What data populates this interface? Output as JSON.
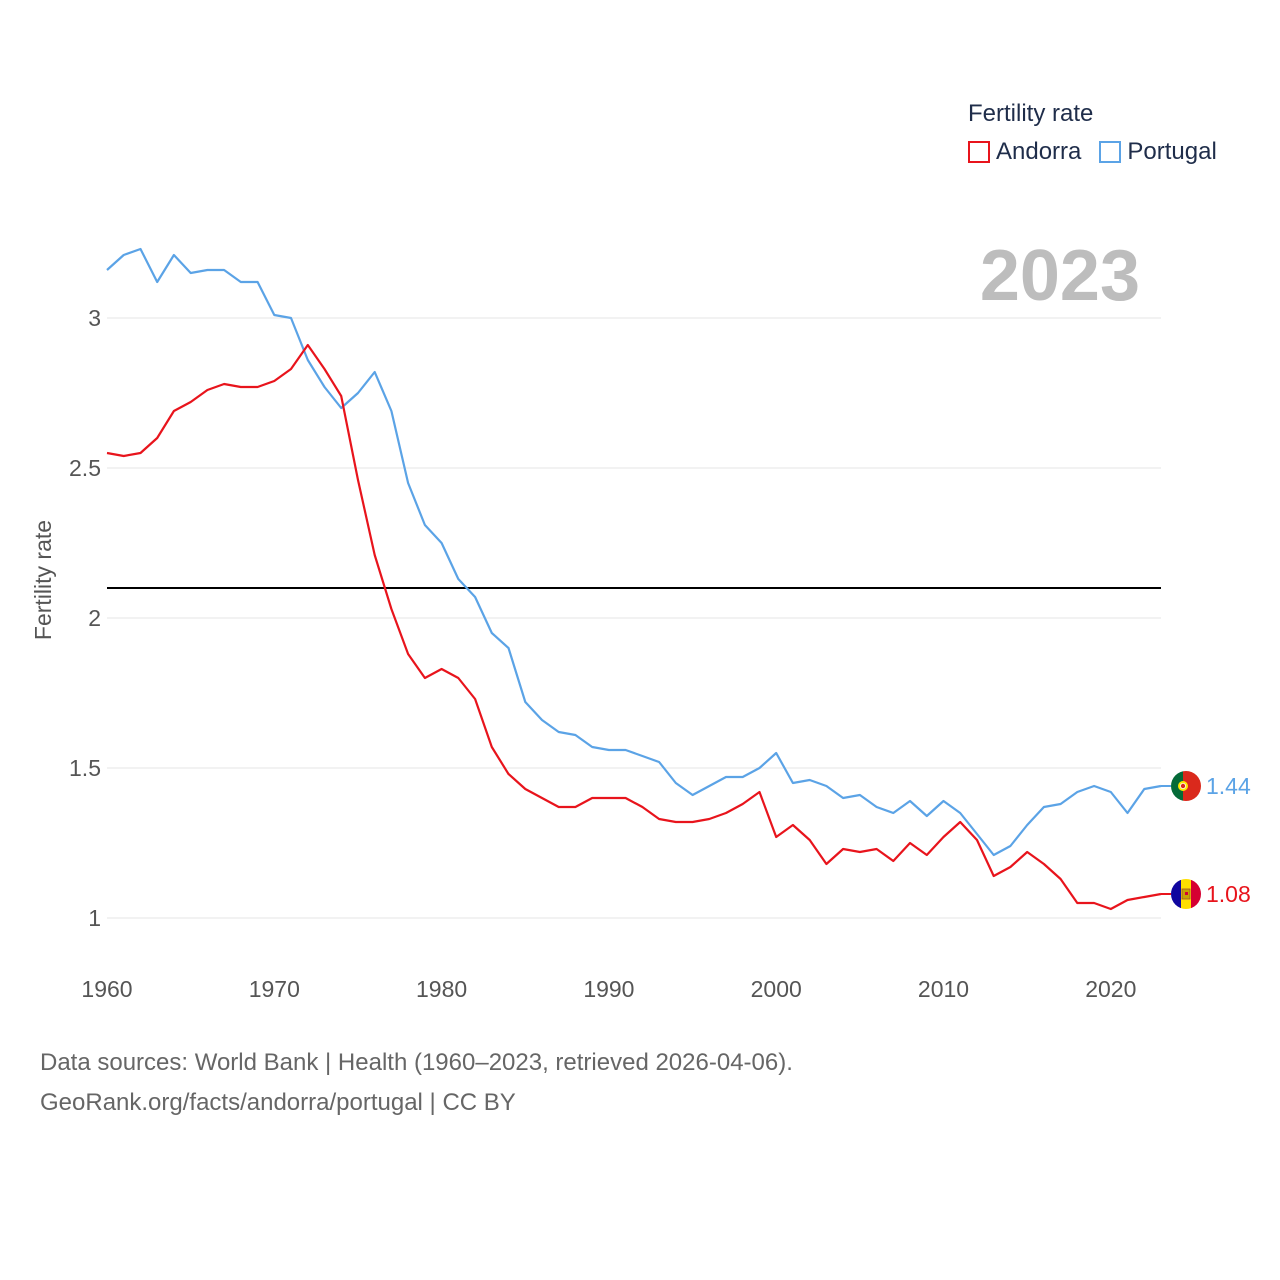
{
  "chart_data": {
    "type": "line",
    "title": "",
    "current_year": "2023",
    "xlabel": "",
    "ylabel": "Fertility rate",
    "xlim": [
      1960,
      2023
    ],
    "ylim": [
      0.9,
      3.3
    ],
    "x_ticks": [
      1960,
      1970,
      1980,
      1990,
      2000,
      2010,
      2020
    ],
    "y_ticks": [
      1,
      1.5,
      2,
      2.5,
      3
    ],
    "y_tick_labels": [
      "1",
      "1.5",
      "2",
      "2.5",
      "3"
    ],
    "reference_line": {
      "value": 2.1,
      "color": "#000000"
    },
    "legend": {
      "title": "Fertility rate",
      "position": "top-right"
    },
    "series": [
      {
        "name": "Andorra",
        "color": "#e8141c",
        "end_label": "1.08",
        "flag": "andorra-flag",
        "values": [
          2.55,
          2.54,
          2.55,
          2.6,
          2.69,
          2.72,
          2.76,
          2.78,
          2.77,
          2.77,
          2.79,
          2.83,
          2.91,
          2.83,
          2.74,
          2.46,
          2.21,
          2.03,
          1.88,
          1.8,
          1.83,
          1.8,
          1.73,
          1.57,
          1.48,
          1.43,
          1.4,
          1.37,
          1.37,
          1.4,
          1.4,
          1.4,
          1.37,
          1.33,
          1.32,
          1.32,
          1.33,
          1.35,
          1.38,
          1.42,
          1.27,
          1.31,
          1.26,
          1.18,
          1.23,
          1.22,
          1.23,
          1.19,
          1.25,
          1.21,
          1.27,
          1.32,
          1.26,
          1.14,
          1.17,
          1.22,
          1.18,
          1.13,
          1.05,
          1.05,
          1.03,
          1.06,
          1.07,
          1.08
        ]
      },
      {
        "name": "Portugal",
        "color": "#5ba3e6",
        "end_label": "1.44",
        "flag": "portugal-flag",
        "values": [
          3.16,
          3.21,
          3.23,
          3.12,
          3.21,
          3.15,
          3.16,
          3.16,
          3.12,
          3.12,
          3.01,
          3.0,
          2.86,
          2.77,
          2.7,
          2.75,
          2.82,
          2.69,
          2.45,
          2.31,
          2.25,
          2.13,
          2.07,
          1.95,
          1.9,
          1.72,
          1.66,
          1.62,
          1.61,
          1.57,
          1.56,
          1.56,
          1.54,
          1.52,
          1.45,
          1.41,
          1.44,
          1.47,
          1.47,
          1.5,
          1.55,
          1.45,
          1.46,
          1.44,
          1.4,
          1.41,
          1.37,
          1.35,
          1.39,
          1.34,
          1.39,
          1.35,
          1.28,
          1.21,
          1.24,
          1.31,
          1.37,
          1.38,
          1.42,
          1.44,
          1.42,
          1.35,
          1.43,
          1.44
        ]
      }
    ],
    "source": "Data sources: World Bank | Health (1960–2023, retrieved 2026-04-06).",
    "attribution": "GeoRank.org/facts/andorra/portugal | CC BY"
  }
}
